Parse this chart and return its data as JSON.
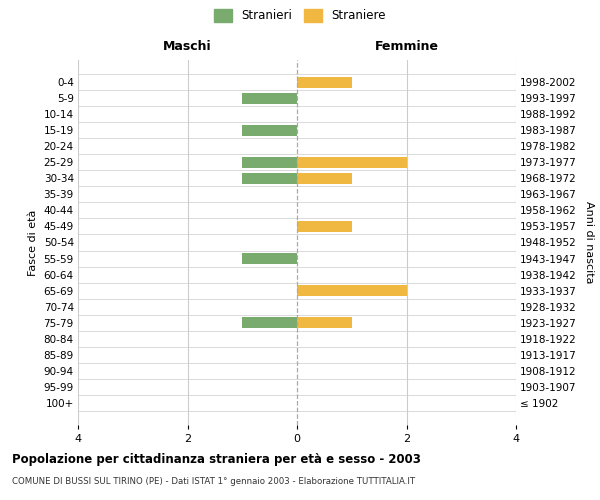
{
  "age_groups": [
    "0-4",
    "5-9",
    "10-14",
    "15-19",
    "20-24",
    "25-29",
    "30-34",
    "35-39",
    "40-44",
    "45-49",
    "50-54",
    "55-59",
    "60-64",
    "65-69",
    "70-74",
    "75-79",
    "80-84",
    "85-89",
    "90-94",
    "95-99",
    "100+"
  ],
  "birth_years": [
    "1998-2002",
    "1993-1997",
    "1988-1992",
    "1983-1987",
    "1978-1982",
    "1973-1977",
    "1968-1972",
    "1963-1967",
    "1958-1962",
    "1953-1957",
    "1948-1952",
    "1943-1947",
    "1938-1942",
    "1933-1937",
    "1928-1932",
    "1923-1927",
    "1918-1922",
    "1913-1917",
    "1908-1912",
    "1903-1907",
    "≤ 1902"
  ],
  "males": [
    0,
    -1,
    0,
    -1,
    0,
    -1,
    -1,
    0,
    0,
    0,
    0,
    -1,
    0,
    0,
    0,
    -1,
    0,
    0,
    0,
    0,
    0
  ],
  "females": [
    1,
    0,
    0,
    0,
    0,
    2,
    1,
    0,
    0,
    1,
    0,
    0,
    0,
    2,
    0,
    1,
    0,
    0,
    0,
    0,
    0
  ],
  "male_color": "#7aab6e",
  "female_color": "#f0b840",
  "xlim": [
    -4,
    4
  ],
  "xticks": [
    -4,
    -2,
    0,
    2,
    4
  ],
  "xtick_labels": [
    "4",
    "2",
    "0",
    "2",
    "4"
  ],
  "title": "Popolazione per cittadinanza straniera per età e sesso - 2003",
  "subtitle": "COMUNE DI BUSSI SUL TIRINO (PE) - Dati ISTAT 1° gennaio 2003 - Elaborazione TUTTITALIA.IT",
  "ylabel_left": "Fasce di età",
  "ylabel_right": "Anni di nascita",
  "col_left": "Maschi",
  "col_right": "Femmine",
  "legend_male": "Stranieri",
  "legend_female": "Straniere",
  "bg_color": "#ffffff",
  "grid_color": "#cccccc",
  "bar_height": 0.72
}
